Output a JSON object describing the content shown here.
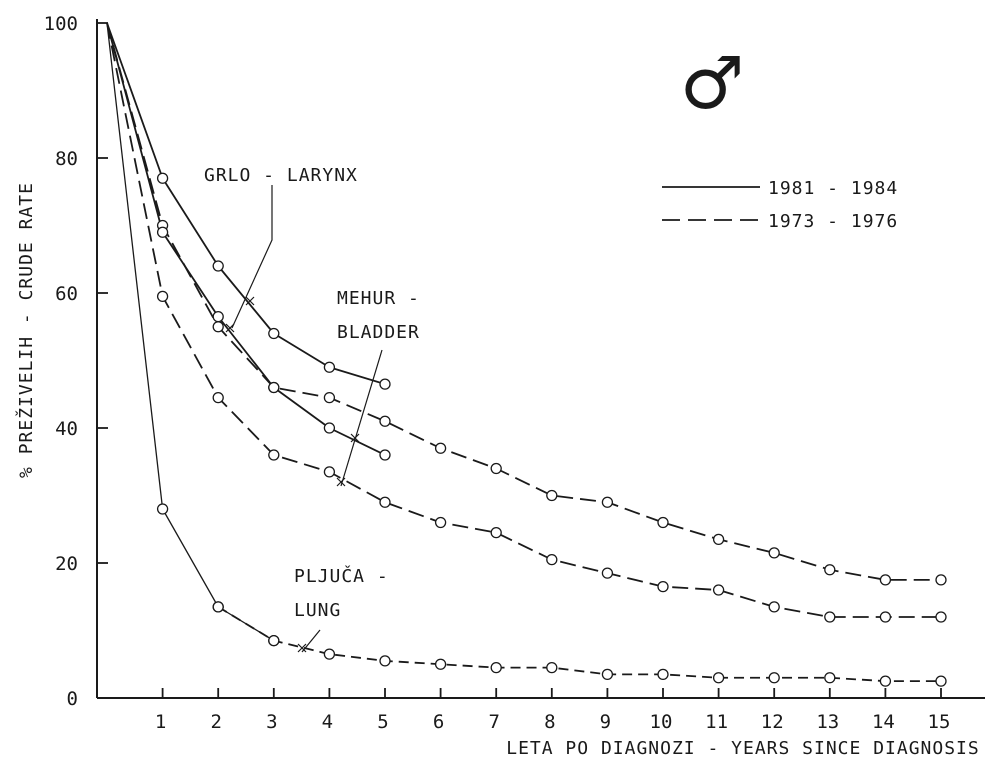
{
  "chart_data": {
    "type": "line",
    "title": "",
    "xlabel": "LETA PO DIAGNOZI - YEARS SINCE DIAGNOSIS",
    "ylabel": "% PREŽIVELIH - CRUDE RATE",
    "xlim": [
      0,
      15
    ],
    "ylim": [
      0,
      100
    ],
    "x_ticks": [
      1,
      2,
      3,
      4,
      5,
      6,
      7,
      8,
      9,
      10,
      11,
      12,
      13,
      14,
      15
    ],
    "y_ticks": [
      0,
      20,
      40,
      60,
      80,
      100
    ],
    "grid": false,
    "symbol": "♂",
    "legend": {
      "position": "top-right",
      "entries": [
        {
          "label": "1981 - 1984",
          "style": "solid"
        },
        {
          "label": "1973 - 1976",
          "style": "dashed"
        }
      ]
    },
    "annotations": [
      {
        "text_lines": [
          "GRLO - LARYNX"
        ]
      },
      {
        "text_lines": [
          "MEHUR -",
          "BLADDER"
        ]
      },
      {
        "text_lines": [
          "PLJUČA -",
          "LUNG"
        ]
      }
    ],
    "series": [
      {
        "site": "larynx",
        "period": "1981 - 1984",
        "style": "solid",
        "x": [
          0,
          1,
          2,
          3,
          4,
          5
        ],
        "y": [
          100,
          77,
          64,
          54,
          49,
          46.5
        ]
      },
      {
        "site": "larynx",
        "period": "1973 - 1976",
        "style": "dashed",
        "x": [
          0,
          1,
          2,
          3,
          4,
          5,
          6,
          7,
          8,
          9,
          10,
          11,
          12,
          13,
          14,
          15
        ],
        "y": [
          100,
          70,
          55,
          46,
          44.5,
          41,
          37,
          34,
          30,
          29,
          26,
          23.5,
          21.5,
          19,
          17.5,
          17.5
        ]
      },
      {
        "site": "bladder",
        "period": "1981 - 1984",
        "style": "solid",
        "x": [
          0,
          1,
          2,
          3,
          4,
          5
        ],
        "y": [
          100,
          69,
          56.5,
          46,
          40,
          36
        ]
      },
      {
        "site": "bladder",
        "period": "1973 - 1976",
        "style": "dashed",
        "x": [
          0,
          1,
          2,
          3,
          4,
          5,
          6,
          7,
          8,
          9,
          10,
          11,
          12,
          13,
          14,
          15
        ],
        "y": [
          100,
          59.5,
          44.5,
          36,
          33.5,
          29,
          26,
          24.5,
          20.5,
          18.5,
          16.5,
          16,
          13.5,
          12,
          12,
          12
        ]
      },
      {
        "site": "lung",
        "period": "1981 - 1984",
        "style": "solid",
        "x": [
          0,
          1,
          2,
          3
        ],
        "y": [
          100,
          28,
          13.5,
          8.5
        ]
      },
      {
        "site": "lung",
        "period": "1973 - 1976",
        "style": "dashed",
        "x": [
          2,
          3,
          4,
          5,
          6,
          7,
          8,
          9,
          10,
          11,
          12,
          13,
          14,
          15
        ],
        "y": [
          13.5,
          8.5,
          6.5,
          5.5,
          5,
          4.5,
          4.5,
          3.5,
          3.5,
          3,
          3,
          3,
          2.5,
          2.5
        ]
      }
    ]
  }
}
